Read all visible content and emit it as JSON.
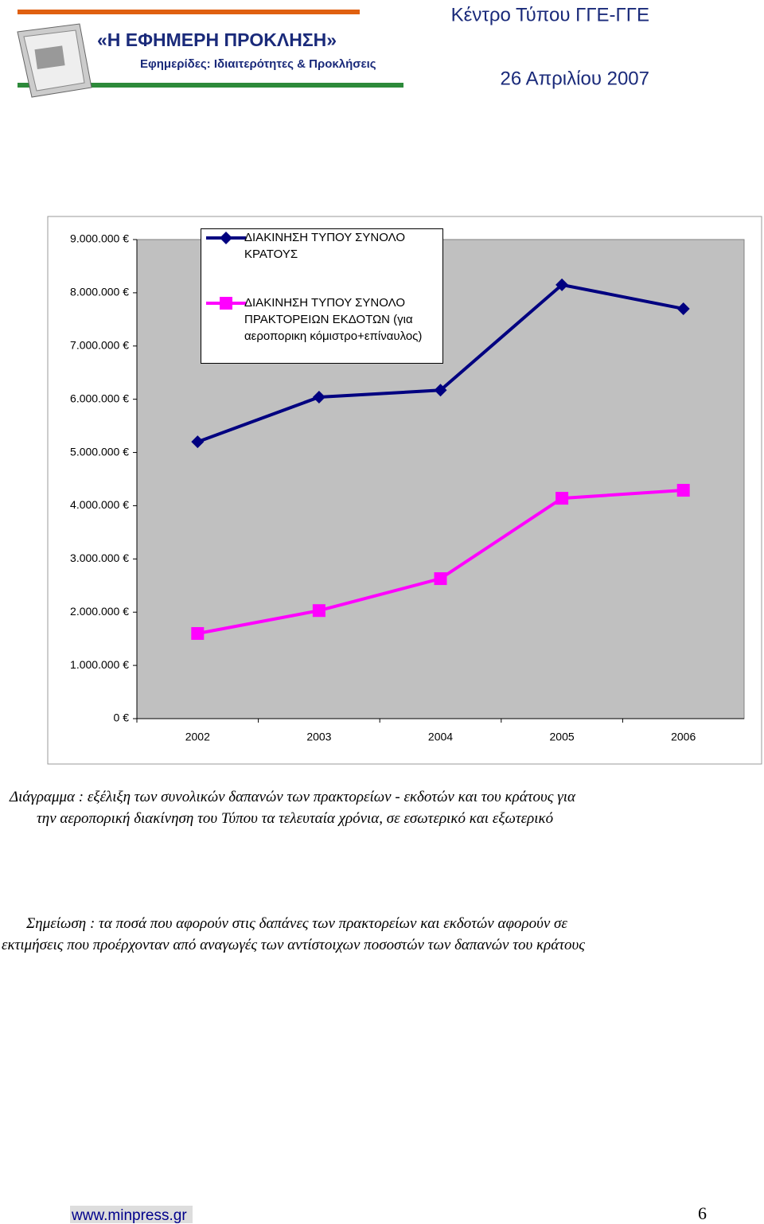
{
  "header": {
    "logo_title": "«Η ΕΦΗΜΕΡΗ ΠΡΟΚΛΗΣΗ»",
    "logo_subtitle": "Εφημερίδες: Ιδιαιτερότητες & Προκλήσεις",
    "organization": "Κέντρο Τύπου ΓΓΕ-ΓΓΕ",
    "date": "26 Απριλίου 2007"
  },
  "chart_data": {
    "type": "line",
    "categories": [
      "2002",
      "2003",
      "2004",
      "2005",
      "2006"
    ],
    "series": [
      {
        "name": "ΔΙΑΚΙΝΗΣΗ ΤΥΠΟΥ ΣΥΝΟΛΟ ΚΡΑΤΟΥΣ",
        "color": "#000080",
        "marker": "diamond",
        "values": [
          5200000,
          6040000,
          6170000,
          8150000,
          7700000
        ]
      },
      {
        "name": "ΔΙΑΚΙΝΗΣΗ ΤΥΠΟΥ ΣΥΝΟΛΟ ΠΡΑΚΤΟΡΕΙΩΝ ΕΚΔΟΤΩΝ (για αεροπορικη κόμιστρο+επίναυλος)",
        "color": "#ff00ff",
        "marker": "square",
        "values": [
          1600000,
          2030000,
          2630000,
          4140000,
          4290000
        ]
      }
    ],
    "ylim": [
      0,
      9000000
    ],
    "yticks": [
      {
        "value": 0,
        "label": "0 €"
      },
      {
        "value": 1000000,
        "label": "1.000.000 €"
      },
      {
        "value": 2000000,
        "label": "2.000.000 €"
      },
      {
        "value": 3000000,
        "label": "3.000.000 €"
      },
      {
        "value": 4000000,
        "label": "4.000.000 €"
      },
      {
        "value": 5000000,
        "label": "5.000.000 €"
      },
      {
        "value": 6000000,
        "label": "6.000.000 €"
      },
      {
        "value": 7000000,
        "label": "7.000.000 €"
      },
      {
        "value": 8000000,
        "label": "8.000.000 €"
      },
      {
        "value": 9000000,
        "label": "9.000.000 €"
      }
    ],
    "legend": "top-left"
  },
  "caption": [
    "Διάγραμμα : εξέλιξη των συνολικών δαπανών των πρακτορείων - εκδοτών και του κράτους για",
    "την αεροπορική  διακίνηση του Τύπου τα τελευταία χρόνια, σε εσωτερικό και εξωτερικό"
  ],
  "note": [
    "Σημείωση : τα ποσά που αφορούν στις δαπάνες των πρακτορείων και εκδοτών αφορούν σε",
    "εκτιμήσεις που προέρχονταν από αναγωγές των αντίστοιχων ποσοστών των δαπανών του κράτους"
  ],
  "footer": {
    "url": "www.minpress.gr",
    "page": "6"
  }
}
